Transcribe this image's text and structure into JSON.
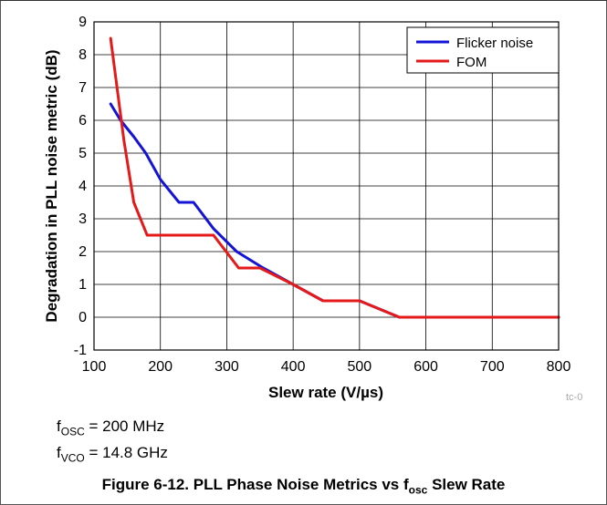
{
  "chart_data": {
    "type": "line",
    "title": "",
    "xlabel": "Slew rate (V/µs)",
    "ylabel": "Degradation in PLL noise metric (dB)",
    "xlim": [
      100,
      800
    ],
    "ylim": [
      -1,
      9
    ],
    "xticks": [
      100,
      200,
      300,
      400,
      500,
      600,
      700,
      800
    ],
    "yticks": [
      -1,
      0,
      1,
      2,
      3,
      4,
      5,
      6,
      7,
      8,
      9
    ],
    "grid": true,
    "legend": "top-right",
    "series": [
      {
        "name": "Flicker noise",
        "color": "#1414d6",
        "x": [
          125,
          140,
          160,
          178,
          200,
          228,
          250,
          280,
          315,
          355,
          400,
          445,
          500,
          560,
          800
        ],
        "y": [
          6.5,
          6.0,
          5.5,
          5.0,
          4.2,
          3.5,
          3.5,
          2.7,
          2.0,
          1.5,
          1.0,
          0.5,
          0.5,
          0.0,
          0.0
        ]
      },
      {
        "name": "FOM",
        "color": "#e41a1a",
        "x": [
          125,
          145,
          160,
          180,
          280,
          318,
          350,
          400,
          445,
          500,
          560,
          800
        ],
        "y": [
          8.5,
          5.4,
          3.5,
          2.5,
          2.5,
          1.5,
          1.5,
          1.0,
          0.5,
          0.5,
          0.0,
          0.0
        ]
      }
    ]
  },
  "conditions": {
    "f_osc": {
      "symbol": "f",
      "sub": "OSC",
      "value": " = 200 MHz"
    },
    "f_vco": {
      "symbol": "f",
      "sub": "VCO",
      "value": " = 14.8 GHz"
    }
  },
  "caption": {
    "prefix": "Figure 6-12. PLL Phase Noise Metrics vs f",
    "sub": "osc",
    "suffix": " Slew Rate"
  },
  "tag": "tc-0"
}
